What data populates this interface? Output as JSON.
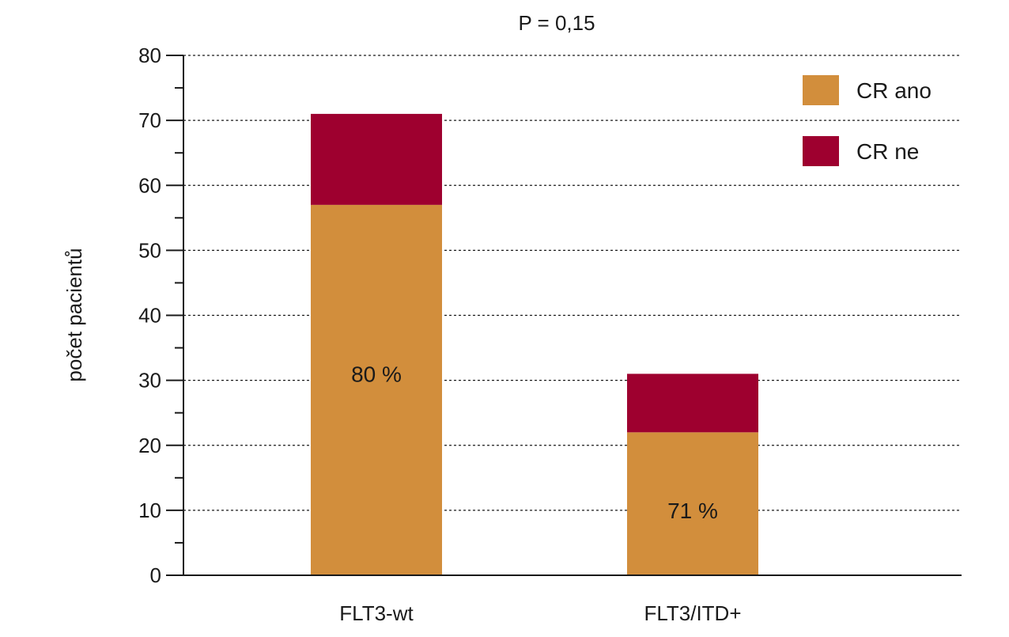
{
  "chart_data": {
    "type": "bar",
    "stacked": true,
    "title": "P = 0,15",
    "xlabel": "",
    "ylabel": "počet pacientů",
    "ylim": [
      0,
      80
    ],
    "yticks": [
      0,
      10,
      20,
      30,
      40,
      50,
      60,
      70,
      80
    ],
    "grid": true,
    "legend_position": "top-right",
    "categories": [
      "FLT3-wt",
      "FLT3/ITD+"
    ],
    "series": [
      {
        "name": "CR ano",
        "color": "#D28E3C",
        "values": [
          57,
          22
        ]
      },
      {
        "name": "CR ne",
        "color": "#9E002F",
        "values": [
          14,
          9
        ]
      }
    ],
    "data_labels": [
      {
        "category": "FLT3-wt",
        "text": "80 %",
        "y": 31
      },
      {
        "category": "FLT3/ITD+",
        "text": "71 %",
        "y": 10
      }
    ]
  }
}
